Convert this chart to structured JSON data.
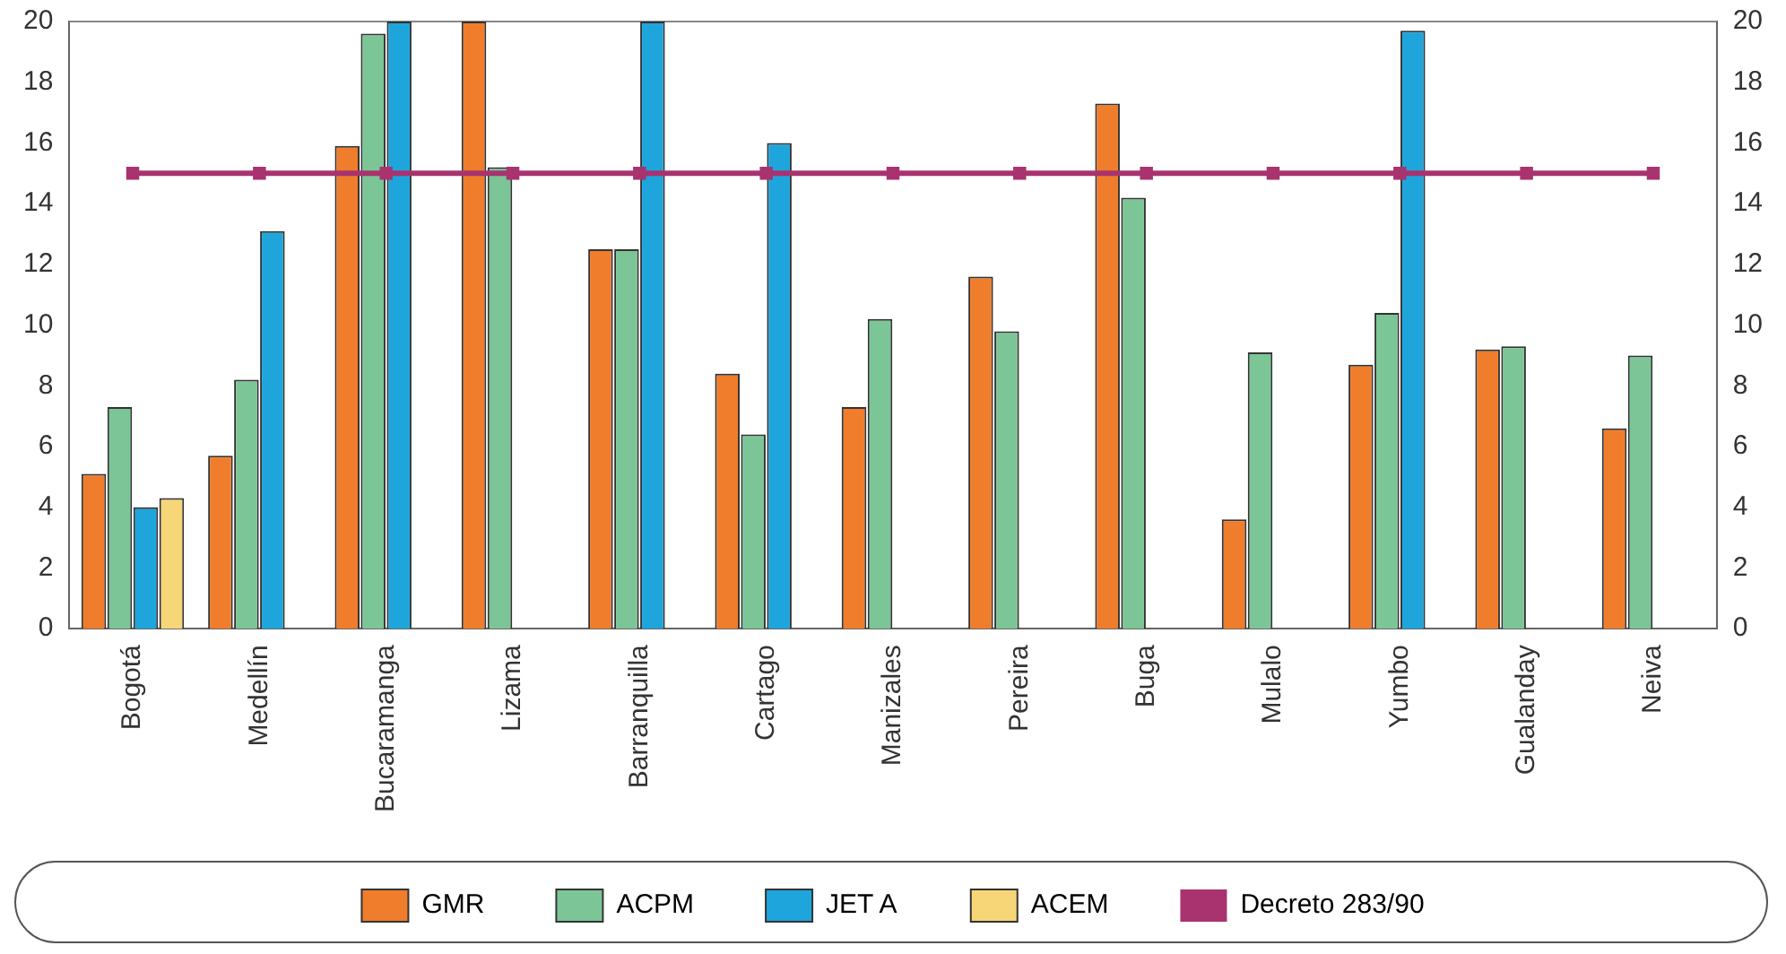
{
  "chart_data": {
    "type": "bar",
    "categories": [
      "Bogotá",
      "Medellín",
      "Bucaramanga",
      "Lizama",
      "Barranquilla",
      "Cartago",
      "Manizales",
      "Pereira",
      "Buga",
      "Mulalo",
      "Yumbo",
      "Gualanday",
      "Neiva"
    ],
    "series": [
      {
        "name": "GMR",
        "color": "#ef7d2b",
        "values": [
          5.1,
          5.7,
          15.9,
          20.0,
          12.5,
          8.4,
          7.3,
          11.6,
          17.3,
          3.6,
          8.7,
          9.2,
          6.6
        ]
      },
      {
        "name": "ACPM",
        "color": "#7cc596",
        "values": [
          7.3,
          8.2,
          19.6,
          15.2,
          12.5,
          6.4,
          10.2,
          9.8,
          14.2,
          9.1,
          10.4,
          9.3,
          9.0
        ]
      },
      {
        "name": "JET A",
        "color": "#1ea5dc",
        "values": [
          4.0,
          13.1,
          20.0,
          null,
          20.0,
          16.0,
          null,
          null,
          null,
          null,
          19.7,
          null,
          null
        ]
      },
      {
        "name": "ACEM",
        "color": "#f6d677",
        "values": [
          4.3,
          null,
          null,
          null,
          null,
          null,
          null,
          null,
          null,
          null,
          null,
          null,
          null
        ]
      },
      {
        "name": "Decreto 283/90",
        "type": "line",
        "color": "#a8336f",
        "marker": "square",
        "values": [
          15,
          15,
          15,
          15,
          15,
          15,
          15,
          15,
          15,
          15,
          15,
          15,
          15
        ]
      }
    ],
    "ylim": [
      0,
      20
    ],
    "yticks": [
      0,
      2,
      4,
      6,
      8,
      10,
      12,
      14,
      16,
      18,
      20
    ],
    "y2lim": [
      0,
      20
    ],
    "y2ticks": [
      0,
      2,
      4,
      6,
      8,
      10,
      12,
      14,
      16,
      18,
      20
    ],
    "grid": false,
    "legend": "bottom"
  }
}
